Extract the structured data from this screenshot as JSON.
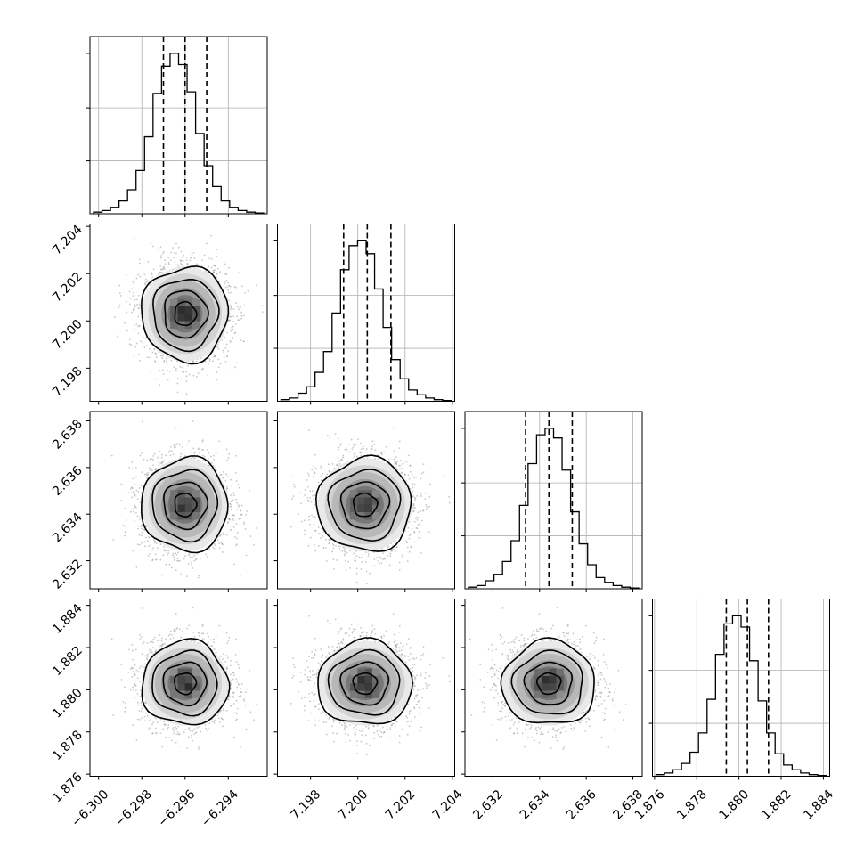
{
  "chart_data": {
    "type": "corner",
    "title": "",
    "grid": true,
    "colors": {
      "line": "#000000",
      "grid": "#b0b0b0",
      "scatter": "#9a9a9a"
    },
    "parameters": [
      {
        "mean": -6.296,
        "sd": 0.001,
        "q16": -6.297,
        "q50": -6.296,
        "q84": -6.295,
        "range": [
          -6.3004,
          -6.2922
        ],
        "ticks": [
          -6.3,
          -6.298,
          -6.296,
          -6.294
        ],
        "tick_labels": [
          "−6.300",
          "−6.298",
          "−6.296",
          "−6.294"
        ],
        "hist_counts": [
          0.01,
          0.02,
          0.04,
          0.08,
          0.15,
          0.27,
          0.48,
          0.75,
          0.92,
          1.0,
          0.93,
          0.76,
          0.5,
          0.3,
          0.17,
          0.08,
          0.04,
          0.02,
          0.01,
          0.005
        ]
      },
      {
        "mean": 7.2003,
        "sd": 0.001,
        "q16": 7.1994,
        "q50": 7.2004,
        "q84": 7.2014,
        "range": [
          7.1966,
          7.2041
        ],
        "ticks": [
          7.198,
          7.2,
          7.202,
          7.204
        ],
        "tick_labels": [
          "7.198",
          "7.200",
          "7.202",
          "7.204"
        ],
        "hist_counts": [
          0.01,
          0.02,
          0.05,
          0.09,
          0.18,
          0.31,
          0.55,
          0.82,
          0.97,
          1.0,
          0.92,
          0.7,
          0.46,
          0.26,
          0.14,
          0.07,
          0.04,
          0.02,
          0.01,
          0.005
        ]
      },
      {
        "mean": 2.6344,
        "sd": 0.001,
        "q16": 2.6334,
        "q50": 2.6344,
        "q84": 2.6354,
        "range": [
          2.6308,
          2.6384
        ],
        "ticks": [
          2.632,
          2.634,
          2.636,
          2.638
        ],
        "tick_labels": [
          "2.632",
          "2.634",
          "2.636",
          "2.638"
        ],
        "hist_counts": [
          0.01,
          0.02,
          0.05,
          0.09,
          0.17,
          0.3,
          0.52,
          0.78,
          0.96,
          1.0,
          0.94,
          0.74,
          0.48,
          0.28,
          0.15,
          0.07,
          0.04,
          0.02,
          0.01,
          0.005
        ]
      },
      {
        "mean": 1.8803,
        "sd": 0.001,
        "q16": 1.8794,
        "q50": 1.8804,
        "q84": 1.8814,
        "range": [
          1.8759,
          1.8843
        ],
        "ticks": [
          1.876,
          1.878,
          1.88,
          1.882,
          1.884
        ],
        "tick_labels": [
          "1.876",
          "1.878",
          "1.880",
          "1.882",
          "1.884"
        ],
        "hist_counts": [
          0.01,
          0.02,
          0.04,
          0.08,
          0.15,
          0.27,
          0.48,
          0.76,
          0.95,
          1.0,
          0.93,
          0.72,
          0.47,
          0.27,
          0.14,
          0.07,
          0.04,
          0.02,
          0.01,
          0.005
        ]
      }
    ],
    "correlation": 0.0,
    "contour_levels_sigma": [
      0.5,
      1.0,
      1.5,
      2.0
    ]
  }
}
